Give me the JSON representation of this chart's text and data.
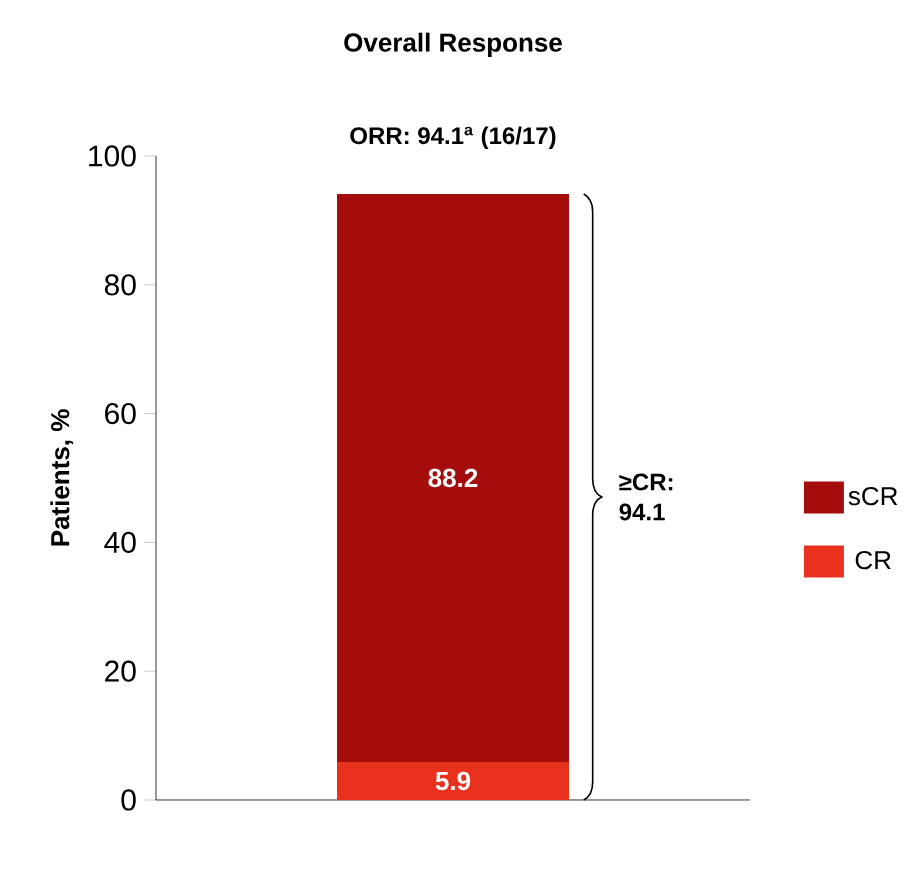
{
  "chart_data": {
    "type": "bar",
    "title": "Overall Response",
    "ylabel": "Patients, %",
    "categories": [
      null
    ],
    "series": [
      {
        "name": "CR",
        "color": "#e8321e",
        "values": [
          5.9
        ],
        "value_labels": [
          "5.9"
        ]
      },
      {
        "name": "sCR",
        "color": "#a50d0d",
        "values": [
          88.2
        ],
        "value_labels": [
          "88.2"
        ]
      }
    ],
    "stacked": true,
    "ylim": [
      0,
      100
    ],
    "yticks": [
      0,
      20,
      40,
      60,
      80,
      100
    ],
    "legend": "right",
    "annotations": [
      "ORR: 94.1$^{a}$ (16/17)",
      "≥CR: 94.1"
    ]
  }
}
